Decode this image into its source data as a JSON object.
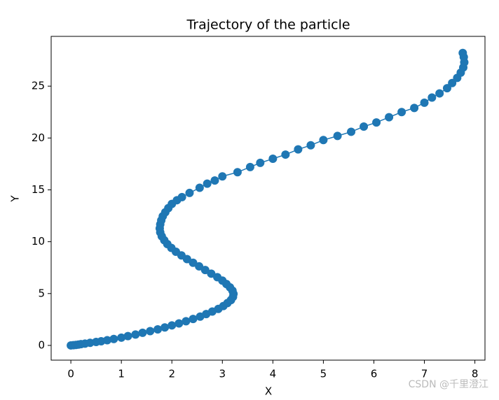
{
  "chart_data": {
    "type": "line",
    "title": "Trajectory of the particle",
    "x_label": "X",
    "y_label": "Y",
    "markers": true,
    "color": "#1f77b4",
    "x": [
      0,
      0.05,
      0.1,
      0.15,
      0.2,
      0.28,
      0.38,
      0.5,
      0.6,
      0.72,
      0.85,
      1.0,
      1.13,
      1.28,
      1.42,
      1.57,
      1.72,
      1.86,
      2.0,
      2.14,
      2.28,
      2.42,
      2.56,
      2.68,
      2.8,
      2.92,
      3.02,
      3.1,
      3.17,
      3.21,
      3.22,
      3.2,
      3.15,
      3.08,
      3.0,
      2.9,
      2.78,
      2.66,
      2.54,
      2.42,
      2.3,
      2.19,
      2.08,
      1.99,
      1.91,
      1.85,
      1.8,
      1.77,
      1.76,
      1.77,
      1.79,
      1.82,
      1.87,
      1.93,
      2.0,
      2.1,
      2.2,
      2.35,
      2.55,
      2.7,
      2.85,
      3.0,
      3.3,
      3.55,
      3.75,
      4.0,
      4.25,
      4.5,
      4.75,
      5.0,
      5.28,
      5.55,
      5.8,
      6.05,
      6.3,
      6.55,
      6.8,
      7.0,
      7.15,
      7.3,
      7.45,
      7.55,
      7.65,
      7.72,
      7.77,
      7.79,
      7.78,
      7.76
    ],
    "y": [
      0,
      0.02,
      0.05,
      0.08,
      0.12,
      0.17,
      0.25,
      0.33,
      0.4,
      0.5,
      0.62,
      0.75,
      0.9,
      1.05,
      1.22,
      1.38,
      1.55,
      1.73,
      1.93,
      2.12,
      2.33,
      2.55,
      2.78,
      3.02,
      3.27,
      3.52,
      3.8,
      4.08,
      4.37,
      4.67,
      4.97,
      5.28,
      5.6,
      5.92,
      6.25,
      6.58,
      6.92,
      7.27,
      7.62,
      7.97,
      8.32,
      8.68,
      9.03,
      9.4,
      9.77,
      10.14,
      10.52,
      10.9,
      11.28,
      11.67,
      12.06,
      12.45,
      12.84,
      13.24,
      13.64,
      14.0,
      14.3,
      14.7,
      15.2,
      15.6,
      15.9,
      16.3,
      16.7,
      17.2,
      17.6,
      18.0,
      18.4,
      18.9,
      19.3,
      19.8,
      20.2,
      20.6,
      21.1,
      21.5,
      22.0,
      22.5,
      22.9,
      23.4,
      23.9,
      24.3,
      24.8,
      25.3,
      25.8,
      26.3,
      26.8,
      27.3,
      27.8,
      28.2
    ],
    "xlim": [
      -0.39,
      8.2
    ],
    "ylim": [
      -1.42,
      29.8
    ],
    "xticks": [
      0,
      1,
      2,
      3,
      4,
      5,
      6,
      7,
      8
    ],
    "yticks": [
      0,
      5,
      10,
      15,
      20,
      25
    ],
    "watermark": "CSDN @千里澄江"
  }
}
